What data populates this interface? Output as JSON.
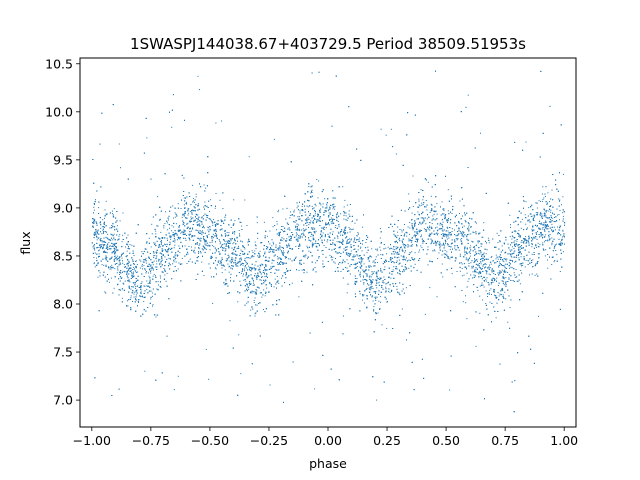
{
  "chart_data": {
    "type": "scatter",
    "title": "1SWASPJ144038.67+403729.5 Period 38509.51953s",
    "xlabel": "phase",
    "ylabel": "flux",
    "xlim": [
      -1.05,
      1.05
    ],
    "ylim": [
      6.72,
      10.56
    ],
    "xticks": [
      -1.0,
      -0.75,
      -0.5,
      -0.25,
      0.0,
      0.25,
      0.5,
      0.75,
      1.0
    ],
    "xtick_labels": [
      "−1.00",
      "−0.75",
      "−0.50",
      "−0.25",
      "0.00",
      "0.25",
      "0.50",
      "0.75",
      "1.00"
    ],
    "yticks": [
      7.0,
      7.5,
      8.0,
      8.5,
      9.0,
      9.5,
      10.0,
      10.5
    ],
    "ytick_labels": [
      "7.0",
      "7.5",
      "8.0",
      "8.5",
      "9.0",
      "9.5",
      "10.0",
      "10.5"
    ],
    "grid": false,
    "marker_color": "#1f77b4",
    "series": [
      {
        "phase_coverage": [
          -1.0,
          1.0
        ],
        "envelope": {
          "x": [
            -1.0,
            -0.9,
            -0.8,
            -0.7,
            -0.6,
            -0.5,
            -0.4,
            -0.3,
            -0.2,
            -0.1,
            0.0,
            0.1,
            0.2,
            0.3,
            0.4,
            0.5,
            0.6,
            0.7,
            0.8,
            0.9,
            1.0
          ],
          "y_center": [
            8.72,
            8.55,
            8.22,
            8.55,
            8.85,
            8.7,
            8.55,
            8.25,
            8.55,
            8.82,
            8.8,
            8.55,
            8.22,
            8.55,
            8.88,
            8.7,
            8.55,
            8.25,
            8.55,
            8.82,
            8.8
          ],
          "y_halfwidth": 0.33
        }
      }
    ]
  }
}
